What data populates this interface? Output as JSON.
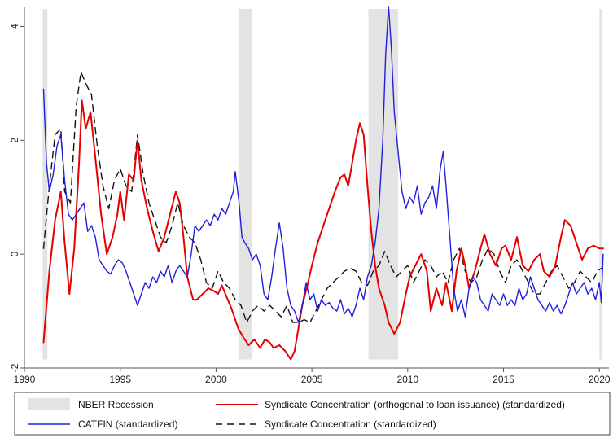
{
  "chart_data": {
    "type": "line",
    "title": "",
    "xlabel": "",
    "ylabel": "",
    "xlim": [
      1990,
      2020.5
    ],
    "ylim": [
      -2,
      4.35
    ],
    "x_ticks": [
      1990,
      1995,
      2000,
      2005,
      2010,
      2015,
      2020
    ],
    "y_ticks": [
      -2,
      0,
      2,
      4
    ],
    "grid": false,
    "legend_position": "bottom",
    "recessions": [
      {
        "start": 1990.95,
        "end": 1991.2
      },
      {
        "start": 2001.2,
        "end": 2001.85
      },
      {
        "start": 2007.95,
        "end": 2009.5
      },
      {
        "start": 2020.0,
        "end": 2020.15
      }
    ],
    "recession_color": "#e3e3e3",
    "series": [
      {
        "name": "Syndicate Concentration (orthogonal to loan issuance) (standardized)",
        "color": "#e60000",
        "dash": "solid",
        "x": [
          1991.0,
          1991.3,
          1991.6,
          1991.9,
          1992.1,
          1992.35,
          1992.6,
          1992.85,
          1993.0,
          1993.2,
          1993.45,
          1993.7,
          1994.0,
          1994.3,
          1994.6,
          1994.85,
          1995.0,
          1995.2,
          1995.45,
          1995.7,
          1995.9,
          1996.1,
          1996.4,
          1996.7,
          1997.0,
          1997.3,
          1997.6,
          1997.9,
          1998.1,
          1998.3,
          1998.5,
          1998.8,
          1999.0,
          1999.3,
          1999.6,
          1999.9,
          2000.1,
          2000.3,
          2000.55,
          2000.8,
          2001.0,
          2001.15,
          2001.4,
          2001.7,
          2002.0,
          2002.3,
          2002.55,
          2002.8,
          2003.0,
          2003.3,
          2003.6,
          2003.9,
          2004.1,
          2004.3,
          2004.5,
          2004.8,
          2005.0,
          2005.3,
          2005.6,
          2005.9,
          2006.2,
          2006.5,
          2006.7,
          2006.9,
          2007.1,
          2007.3,
          2007.5,
          2007.7,
          2007.9,
          2008.1,
          2008.3,
          2008.5,
          2008.8,
          2009.0,
          2009.3,
          2009.6,
          2009.9,
          2010.1,
          2010.4,
          2010.7,
          2011.0,
          2011.2,
          2011.5,
          2011.8,
          2012.0,
          2012.3,
          2012.55,
          2012.8,
          2013.0,
          2013.2,
          2013.5,
          2013.8,
          2014.0,
          2014.3,
          2014.6,
          2014.9,
          2015.1,
          2015.4,
          2015.7,
          2016.0,
          2016.3,
          2016.6,
          2016.9,
          2017.1,
          2017.4,
          2017.7,
          2018.0,
          2018.2,
          2018.5,
          2018.8,
          2019.1,
          2019.4,
          2019.7,
          2020.0,
          2020.2
        ],
        "values": [
          -1.55,
          -0.3,
          0.6,
          1.1,
          0.2,
          -0.7,
          0.1,
          1.6,
          2.7,
          2.2,
          2.5,
          1.7,
          0.7,
          0.0,
          0.3,
          0.7,
          1.1,
          0.6,
          1.4,
          1.3,
          2.0,
          1.3,
          0.8,
          0.4,
          0.05,
          0.3,
          0.7,
          1.1,
          0.9,
          0.3,
          -0.4,
          -0.8,
          -0.8,
          -0.7,
          -0.6,
          -0.65,
          -0.7,
          -0.55,
          -0.75,
          -0.95,
          -1.15,
          -1.3,
          -1.45,
          -1.6,
          -1.5,
          -1.65,
          -1.5,
          -1.55,
          -1.65,
          -1.6,
          -1.7,
          -1.85,
          -1.7,
          -1.3,
          -0.9,
          -0.5,
          -0.2,
          0.2,
          0.5,
          0.8,
          1.1,
          1.35,
          1.4,
          1.2,
          1.6,
          2.0,
          2.3,
          2.1,
          1.2,
          0.4,
          -0.2,
          -0.6,
          -0.9,
          -1.2,
          -1.4,
          -1.2,
          -0.7,
          -0.4,
          -0.2,
          0.0,
          -0.3,
          -1.0,
          -0.6,
          -0.9,
          -0.5,
          -1.0,
          -0.3,
          0.1,
          -0.2,
          -0.6,
          -0.3,
          0.1,
          0.35,
          0.0,
          -0.2,
          0.1,
          0.15,
          -0.1,
          0.3,
          -0.2,
          -0.3,
          -0.1,
          0.0,
          -0.3,
          -0.4,
          -0.2,
          0.3,
          0.6,
          0.5,
          0.2,
          -0.1,
          0.1,
          0.15,
          0.1,
          0.1
        ]
      },
      {
        "name": "Syndicate Concentration (standardized)",
        "color": "#111111",
        "dash": "dashed",
        "x": [
          1991.0,
          1991.3,
          1991.6,
          1991.9,
          1992.1,
          1992.4,
          1992.7,
          1992.95,
          1993.2,
          1993.5,
          1993.8,
          1994.1,
          1994.4,
          1994.7,
          1995.0,
          1995.3,
          1995.6,
          1995.9,
          1996.2,
          1996.5,
          1996.8,
          1997.1,
          1997.4,
          1997.7,
          1998.0,
          1998.3,
          1998.6,
          1998.9,
          1999.2,
          1999.5,
          1999.8,
          2000.1,
          2000.4,
          2000.7,
          2001.0,
          2001.3,
          2001.6,
          2001.9,
          2002.2,
          2002.5,
          2002.8,
          2003.1,
          2003.4,
          2003.7,
          2004.0,
          2004.3,
          2004.6,
          2004.9,
          2005.2,
          2005.5,
          2005.8,
          2006.1,
          2006.4,
          2006.7,
          2007.0,
          2007.3,
          2007.6,
          2007.9,
          2008.2,
          2008.5,
          2008.8,
          2009.1,
          2009.4,
          2009.7,
          2010.0,
          2010.3,
          2010.6,
          2010.9,
          2011.2,
          2011.5,
          2011.8,
          2012.1,
          2012.4,
          2012.7,
          2013.0,
          2013.3,
          2013.6,
          2013.9,
          2014.2,
          2014.5,
          2014.8,
          2015.1,
          2015.4,
          2015.7,
          2016.0,
          2016.3,
          2016.6,
          2016.9,
          2017.2,
          2017.5,
          2017.8,
          2018.1,
          2018.4,
          2018.7,
          2019.0,
          2019.3,
          2019.6,
          2019.9,
          2020.1
        ],
        "values": [
          0.1,
          1.2,
          2.1,
          2.2,
          1.1,
          0.9,
          2.6,
          3.2,
          3.0,
          2.8,
          1.9,
          1.2,
          0.8,
          1.3,
          1.5,
          1.2,
          1.1,
          2.1,
          1.4,
          0.9,
          0.6,
          0.3,
          0.2,
          0.5,
          0.9,
          0.5,
          0.3,
          0.2,
          -0.1,
          -0.5,
          -0.6,
          -0.3,
          -0.5,
          -0.6,
          -0.8,
          -0.9,
          -1.2,
          -1.0,
          -0.9,
          -1.0,
          -0.9,
          -1.0,
          -1.1,
          -0.9,
          -1.2,
          -1.2,
          -1.15,
          -1.2,
          -1.0,
          -0.8,
          -0.6,
          -0.5,
          -0.4,
          -0.3,
          -0.25,
          -0.3,
          -0.5,
          -0.55,
          -0.3,
          -0.2,
          0.05,
          -0.2,
          -0.4,
          -0.3,
          -0.2,
          -0.5,
          -0.3,
          -0.1,
          -0.2,
          -0.4,
          -0.3,
          -0.5,
          -0.1,
          0.1,
          -0.3,
          -0.5,
          -0.4,
          -0.1,
          0.1,
          0.0,
          -0.3,
          -0.5,
          -0.2,
          -0.1,
          -0.3,
          -0.5,
          -0.7,
          -0.7,
          -0.5,
          -0.3,
          -0.2,
          -0.4,
          -0.6,
          -0.5,
          -0.3,
          -0.4,
          -0.5,
          -0.3,
          -0.25
        ]
      },
      {
        "name": "CATFIN (standardized)",
        "color": "#1f1fdc",
        "dash": "solid",
        "x": [
          1991.0,
          1991.15,
          1991.3,
          1991.5,
          1991.7,
          1991.9,
          1992.1,
          1992.3,
          1992.5,
          1992.7,
          1992.9,
          1993.1,
          1993.3,
          1993.5,
          1993.7,
          1993.9,
          1994.1,
          1994.3,
          1994.5,
          1994.7,
          1994.9,
          1995.1,
          1995.3,
          1995.5,
          1995.7,
          1995.9,
          1996.1,
          1996.3,
          1996.5,
          1996.7,
          1996.9,
          1997.1,
          1997.3,
          1997.5,
          1997.7,
          1997.9,
          1998.1,
          1998.3,
          1998.5,
          1998.7,
          1998.9,
          1999.1,
          1999.3,
          1999.5,
          1999.7,
          1999.9,
          2000.1,
          2000.3,
          2000.5,
          2000.7,
          2000.9,
          2001.0,
          2001.2,
          2001.35,
          2001.5,
          2001.7,
          2001.9,
          2002.1,
          2002.3,
          2002.5,
          2002.7,
          2002.9,
          2003.1,
          2003.3,
          2003.5,
          2003.7,
          2003.9,
          2004.1,
          2004.3,
          2004.5,
          2004.7,
          2004.9,
          2005.1,
          2005.3,
          2005.5,
          2005.7,
          2005.9,
          2006.1,
          2006.3,
          2006.5,
          2006.7,
          2006.9,
          2007.1,
          2007.3,
          2007.5,
          2007.7,
          2007.9,
          2008.1,
          2008.3,
          2008.5,
          2008.7,
          2008.85,
          2009.0,
          2009.15,
          2009.3,
          2009.5,
          2009.7,
          2009.9,
          2010.1,
          2010.3,
          2010.5,
          2010.7,
          2010.9,
          2011.1,
          2011.3,
          2011.5,
          2011.7,
          2011.85,
          2012.0,
          2012.2,
          2012.4,
          2012.6,
          2012.8,
          2013.0,
          2013.2,
          2013.4,
          2013.6,
          2013.8,
          2014.0,
          2014.2,
          2014.4,
          2014.6,
          2014.8,
          2015.0,
          2015.2,
          2015.4,
          2015.6,
          2015.8,
          2016.0,
          2016.2,
          2016.4,
          2016.6,
          2016.8,
          2017.0,
          2017.2,
          2017.4,
          2017.6,
          2017.8,
          2018.0,
          2018.2,
          2018.4,
          2018.6,
          2018.8,
          2019.0,
          2019.2,
          2019.4,
          2019.6,
          2019.8,
          2020.0,
          2020.1,
          2020.2
        ],
        "values": [
          2.9,
          1.6,
          1.1,
          1.4,
          1.9,
          2.1,
          1.3,
          0.7,
          0.6,
          0.7,
          0.8,
          0.9,
          0.4,
          0.5,
          0.3,
          -0.1,
          -0.2,
          -0.3,
          -0.35,
          -0.2,
          -0.1,
          -0.15,
          -0.3,
          -0.5,
          -0.7,
          -0.9,
          -0.7,
          -0.5,
          -0.6,
          -0.4,
          -0.5,
          -0.3,
          -0.4,
          -0.2,
          -0.5,
          -0.3,
          -0.2,
          -0.3,
          -0.4,
          0.0,
          0.5,
          0.4,
          0.5,
          0.6,
          0.5,
          0.7,
          0.6,
          0.8,
          0.7,
          0.9,
          1.1,
          1.45,
          0.9,
          0.3,
          0.2,
          0.1,
          -0.1,
          0.0,
          -0.2,
          -0.7,
          -0.8,
          -0.4,
          0.1,
          0.55,
          0.1,
          -0.6,
          -0.9,
          -1.0,
          -1.2,
          -0.9,
          -0.5,
          -0.8,
          -0.7,
          -1.0,
          -0.8,
          -0.9,
          -0.85,
          -0.95,
          -1.0,
          -0.8,
          -1.05,
          -0.95,
          -1.1,
          -0.9,
          -0.6,
          -0.8,
          -0.4,
          -0.2,
          0.2,
          0.8,
          2.0,
          3.5,
          4.35,
          3.6,
          2.5,
          1.8,
          1.1,
          0.8,
          1.0,
          0.9,
          1.2,
          0.7,
          0.9,
          1.0,
          1.2,
          0.8,
          1.5,
          1.8,
          1.2,
          0.3,
          -0.6,
          -1.0,
          -0.8,
          -1.1,
          -0.6,
          -0.4,
          -0.5,
          -0.8,
          -0.9,
          -1.0,
          -0.7,
          -0.8,
          -0.9,
          -0.7,
          -0.9,
          -0.8,
          -0.9,
          -0.6,
          -0.8,
          -0.7,
          -0.4,
          -0.6,
          -0.8,
          -0.9,
          -1.0,
          -0.85,
          -1.0,
          -0.9,
          -1.05,
          -0.9,
          -0.7,
          -0.5,
          -0.7,
          -0.6,
          -0.5,
          -0.7,
          -0.6,
          -0.8,
          -0.5,
          -0.85,
          0.0
        ]
      }
    ],
    "legend": [
      {
        "label": "NBER Recession",
        "kind": "box"
      },
      {
        "label": "Syndicate Concentration (orthogonal to loan issuance) (standardized)",
        "kind": "red-line"
      },
      {
        "label": "CATFIN (standardized)",
        "kind": "blue-line"
      },
      {
        "label": "Syndicate Concentration (standardized)",
        "kind": "dash-line"
      }
    ]
  }
}
